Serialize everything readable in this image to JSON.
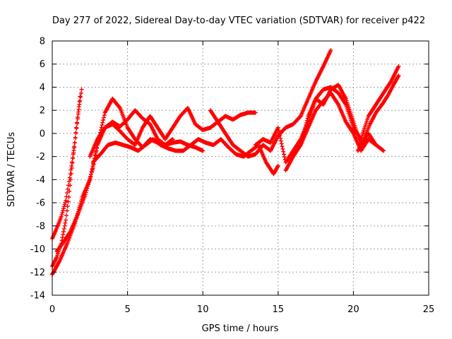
{
  "chart_data": {
    "type": "scatter",
    "title": "Day 277 of 2022, Sidereal Day-to-day VTEC variation (SDTVAR) for receiver p422",
    "xlabel": "GPS time / hours",
    "ylabel": "SDTVAR / TECUs",
    "xlim": [
      0,
      25
    ],
    "ylim": [
      -14,
      8
    ],
    "xticks": [
      0,
      5,
      10,
      15,
      20,
      25
    ],
    "yticks": [
      -14,
      -12,
      -10,
      -8,
      -6,
      -4,
      -2,
      0,
      2,
      4,
      6,
      8
    ],
    "grid": true,
    "legend": "none",
    "marker": "+",
    "series_color": "#ff0000",
    "series": [
      {
        "name": "arc1",
        "x": [
          0.0,
          0.3,
          0.6,
          0.9,
          1.2,
          1.5,
          1.8,
          1.95
        ],
        "y": [
          -9.1,
          -8.2,
          -7.2,
          -5.8,
          -3.5,
          -0.8,
          2.5,
          3.8
        ]
      },
      {
        "name": "arc2",
        "x": [
          0.0,
          0.3,
          0.6,
          0.9,
          1.1,
          1.3,
          1.6,
          1.85
        ],
        "y": [
          -11.5,
          -10.7,
          -9.5,
          -7.5,
          -5.5,
          -3.0,
          0.5,
          3.2
        ]
      },
      {
        "name": "arc3",
        "x": [
          0.0,
          0.5,
          1.0,
          1.5,
          2.0,
          2.5,
          3.0,
          3.5,
          4.0,
          4.5,
          5.0,
          5.5,
          6.0,
          6.5,
          7.0,
          7.5,
          8.0
        ],
        "y": [
          -12.2,
          -11.0,
          -9.5,
          -7.8,
          -5.5,
          -4.0,
          -1.0,
          1.8,
          3.0,
          2.2,
          0.5,
          -0.5,
          -1.2,
          -0.5,
          -0.8,
          -1.0,
          -0.5
        ]
      },
      {
        "name": "arc4",
        "x": [
          0.3,
          0.7,
          1.2,
          1.7,
          2.2,
          2.7,
          3.0,
          3.5,
          4.0,
          4.5,
          5.0,
          5.5,
          6.0,
          6.5,
          7.0,
          7.5,
          8.0,
          8.5,
          9.0,
          9.5,
          10.0
        ],
        "y": [
          -10.2,
          -9.5,
          -8.5,
          -7.0,
          -5.3,
          -3.0,
          -1.0,
          0.5,
          1.0,
          0.6,
          1.2,
          2.0,
          1.3,
          0.8,
          -0.5,
          -1.0,
          -0.8,
          -0.7,
          -1.0,
          -1.2,
          -1.5
        ]
      },
      {
        "name": "arc5",
        "x": [
          2.5,
          3.0,
          3.5,
          4.0,
          4.5,
          5.0,
          5.5,
          6.0,
          6.5,
          7.0,
          7.5,
          8.0,
          8.5,
          9.0,
          9.5,
          10.0,
          10.5,
          11.0,
          11.5,
          12.0,
          12.5,
          13.0,
          13.5
        ],
        "y": [
          -2.0,
          -0.5,
          0.5,
          0.8,
          0.2,
          -0.5,
          -1.0,
          0.5,
          1.5,
          0.5,
          -0.5,
          0.5,
          1.5,
          2.2,
          0.8,
          0.3,
          0.5,
          1.0,
          1.5,
          1.2,
          1.6,
          1.8,
          1.8
        ]
      },
      {
        "name": "arc6",
        "x": [
          2.7,
          3.2,
          3.7,
          4.2,
          4.7,
          5.2,
          5.7,
          6.2,
          6.7,
          7.2,
          7.7,
          8.2,
          8.7,
          9.2,
          9.7,
          10.2,
          10.7,
          11.2,
          11.7,
          12.2,
          12.7,
          13.2,
          13.7,
          14.2,
          14.7,
          15.0
        ],
        "y": [
          -2.5,
          -1.8,
          -1.0,
          -0.8,
          -1.0,
          -1.2,
          -1.5,
          -1.0,
          -0.5,
          -1.0,
          -1.3,
          -1.5,
          -1.5,
          -1.0,
          -0.5,
          -0.8,
          -1.0,
          -0.5,
          -1.2,
          -1.8,
          -2.0,
          -1.5,
          -1.0,
          -2.5,
          -3.5,
          -2.8
        ]
      },
      {
        "name": "arc7",
        "x": [
          10.5,
          11.0,
          11.5,
          12.0,
          12.5,
          13.0,
          13.5,
          14.0,
          14.5,
          15.0,
          15.5,
          16.0,
          16.5,
          17.0,
          17.5,
          18.0,
          18.5
        ],
        "y": [
          2.0,
          1.0,
          0.0,
          -1.0,
          -1.5,
          -2.0,
          -1.8,
          -1.0,
          -1.5,
          -0.2,
          0.5,
          0.8,
          1.5,
          3.0,
          4.5,
          5.8,
          7.2
        ]
      },
      {
        "name": "arc8",
        "x": [
          13.5,
          14.0,
          14.5,
          15.0,
          15.5,
          16.0,
          16.5,
          17.0,
          17.5,
          18.0,
          18.5,
          19.0,
          19.5,
          20.0,
          20.5,
          21.0,
          21.5
        ],
        "y": [
          -1.0,
          -0.5,
          -0.8,
          0.5,
          -2.5,
          -1.5,
          -0.5,
          1.0,
          3.0,
          2.5,
          3.8,
          4.2,
          3.0,
          1.0,
          -1.0,
          0.0,
          -1.0
        ]
      },
      {
        "name": "arc9",
        "x": [
          15.5,
          16.0,
          16.5,
          17.0,
          17.5,
          18.0,
          18.5,
          19.0,
          19.5,
          20.0,
          20.5,
          21.0,
          21.5,
          22.0
        ],
        "y": [
          -3.2,
          -2.0,
          -1.0,
          0.5,
          2.0,
          2.8,
          3.5,
          2.5,
          1.0,
          0.0,
          -1.5,
          -0.5,
          -1.0,
          -1.5
        ]
      },
      {
        "name": "arc10",
        "x": [
          16.5,
          17.0,
          17.5,
          18.0,
          18.5,
          19.0,
          19.5,
          20.0,
          20.5,
          21.0,
          21.5,
          22.0,
          22.5,
          23.0
        ],
        "y": [
          -1.0,
          1.5,
          3.0,
          3.8,
          4.0,
          3.5,
          2.5,
          0.5,
          -0.5,
          1.5,
          2.5,
          3.5,
          4.5,
          5.8
        ]
      },
      {
        "name": "arc11",
        "x": [
          20.3,
          20.7,
          21.1,
          21.5,
          21.9,
          22.3,
          22.7,
          23.0
        ],
        "y": [
          -1.5,
          -0.5,
          0.8,
          1.8,
          2.5,
          3.3,
          4.3,
          5.0
        ]
      }
    ]
  }
}
